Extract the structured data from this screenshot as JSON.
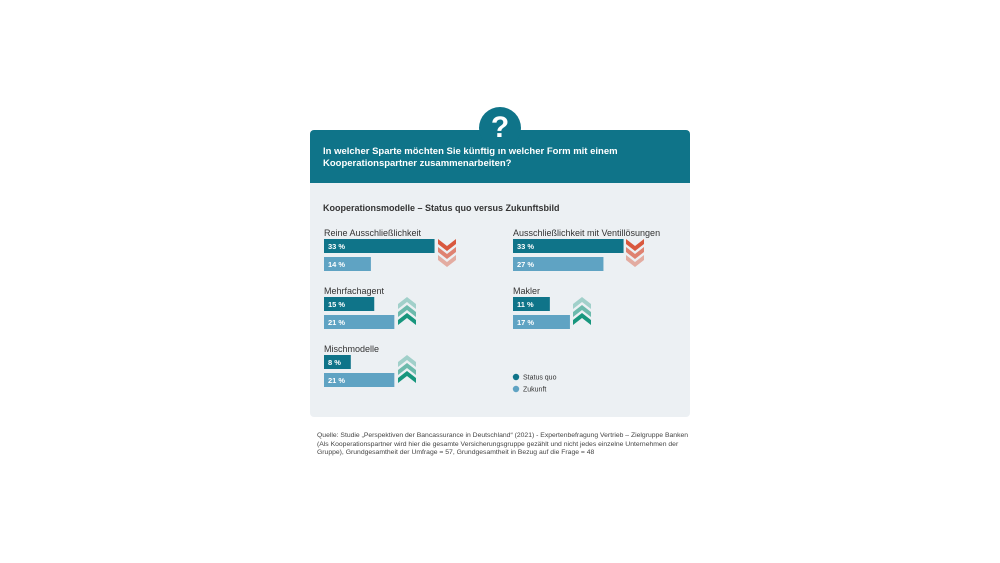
{
  "question_icon": "question-mark-icon",
  "header": {
    "question": "In welcher Sparte möchten Sie künftig in welcher Form mit einem Kooperationspartner zusammenarbeiten?"
  },
  "colors": {
    "status_quo": "#0f7489",
    "zukunft": "#5fa3c3",
    "decrease_arrow": "#d9583e",
    "increase_arrow": "#17967d",
    "panel_bg": "#ecf0f3"
  },
  "chart_data": {
    "type": "bar",
    "orientation": "horizontal",
    "title": "Kooperationsmodelle – Status quo versus Zukunftsbild",
    "unit": "%",
    "categories": [
      "Reine Ausschließlichkeit",
      "Ausschließlichkeit mit Ventillösungen",
      "Mehrfachagent",
      "Makler",
      "Mischmodelle"
    ],
    "series": [
      {
        "name": "Status quo",
        "values": [
          33,
          33,
          15,
          11,
          8
        ],
        "labels": [
          "33 %",
          "33 %",
          "15 %",
          "11 %",
          "8 %"
        ]
      },
      {
        "name": "Zukunft",
        "values": [
          14,
          27,
          21,
          17,
          21
        ],
        "labels": [
          "14 %",
          "27 %",
          "21 %",
          "17 %",
          "21 %"
        ]
      }
    ],
    "trend": [
      "down",
      "down",
      "up",
      "up",
      "up"
    ],
    "legend": [
      "Status quo",
      "Zukunft"
    ],
    "legend_position": "bottom-right"
  },
  "source": "Quelle: Studie „Perspektiven der Bancassurance in Deutschland“ (2021) - Expertenbefragung Vertrieb – Zielgruppe Banken (Als Kooperationspartner wird hier die gesamte Versicherungsgruppe gezählt und nicht jedes einzelne Unternehmen der Gruppe), Grundgesamtheit der Umfrage = 57, Grundgesamtheit in Bezug auf die Frage = 48"
}
